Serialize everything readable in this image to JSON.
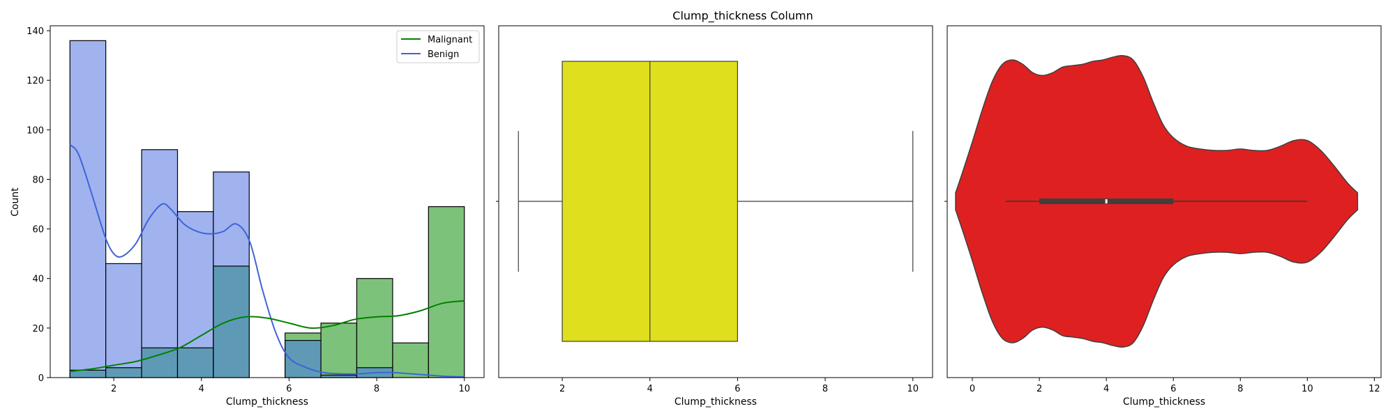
{
  "suptitle": "Clump_thickness Column",
  "colors": {
    "malignant_fill": "#7dc27a",
    "malignant_line": "#008000",
    "benign_fill": "#a0b3ee",
    "benign_line": "#3f63d8",
    "overlap_fill": "#5e9ab5",
    "box_fill": "#dfdf1e",
    "violin_fill": "#df2020",
    "edge": "#000000",
    "violin_edge": "#3f3f3f"
  },
  "chart_data": [
    {
      "type": "histogram",
      "xlabel": "Clump_thickness",
      "ylabel": "Count",
      "xlim": [
        0.55,
        10.45
      ],
      "ylim": [
        0,
        142
      ],
      "xticks": [
        2,
        4,
        6,
        8,
        10
      ],
      "yticks": [
        0,
        20,
        40,
        60,
        80,
        100,
        120,
        140
      ],
      "legend": {
        "placement": "top-right",
        "entries": [
          "Malignant",
          "Benign"
        ]
      },
      "bin_edges": [
        1,
        1.818,
        2.636,
        3.455,
        4.273,
        5.091,
        5.909,
        6.727,
        7.545,
        8.364,
        9.182,
        10
      ],
      "series": [
        {
          "name": "Benign",
          "values": [
            136,
            46,
            92,
            67,
            83,
            0,
            15,
            1,
            4,
            0,
            0
          ]
        },
        {
          "name": "Malignant",
          "values": [
            3,
            4,
            12,
            12,
            45,
            0,
            18,
            22,
            40,
            14,
            69
          ]
        }
      ],
      "kde": [
        {
          "name": "Benign",
          "x": [
            1,
            1.2,
            1.5,
            1.8,
            2.0,
            2.2,
            2.5,
            2.8,
            3.1,
            3.3,
            3.6,
            3.9,
            4.2,
            4.5,
            4.8,
            5.1,
            5.4,
            5.7,
            6.0,
            6.4,
            6.8,
            7.2,
            7.6,
            8.0,
            8.4,
            8.8,
            9.2,
            9.6,
            10
          ],
          "y": [
            94,
            90,
            74,
            57,
            50,
            49,
            54,
            64,
            70,
            68,
            62,
            59,
            58,
            59,
            62,
            55,
            35,
            18,
            8,
            4,
            2,
            1.5,
            1.5,
            2,
            2,
            1.5,
            1,
            0.5,
            0.3
          ]
        },
        {
          "name": "Malignant",
          "x": [
            1,
            1.5,
            2.0,
            2.5,
            3.0,
            3.5,
            4.0,
            4.5,
            5.0,
            5.5,
            6.0,
            6.5,
            7.0,
            7.5,
            8.0,
            8.5,
            9.0,
            9.5,
            10
          ],
          "y": [
            2.5,
            3.5,
            5,
            6.5,
            9,
            12,
            17,
            22,
            24.5,
            24,
            22,
            20,
            21,
            23.5,
            24.5,
            25,
            27,
            30,
            31
          ]
        }
      ]
    },
    {
      "type": "box",
      "xlabel": "Clump_thickness",
      "xlim": [
        0.55,
        10.45
      ],
      "xticks": [
        2,
        4,
        6,
        8,
        10
      ],
      "stats": {
        "min": 1,
        "q1": 2,
        "median": 4,
        "q3": 6,
        "max": 10
      }
    },
    {
      "type": "violin",
      "xlabel": "Clump_thickness",
      "xlim": [
        -0.75,
        12.2
      ],
      "xticks": [
        0,
        2,
        4,
        6,
        8,
        10,
        12
      ],
      "stats": {
        "min": 1,
        "q1": 2,
        "median": 4,
        "q3": 6,
        "max": 10
      },
      "density": {
        "x": [
          -0.5,
          -0.3,
          0,
          0.3,
          0.6,
          0.9,
          1.2,
          1.5,
          1.8,
          2.1,
          2.4,
          2.7,
          3.0,
          3.3,
          3.6,
          3.9,
          4.2,
          4.5,
          4.8,
          5.1,
          5.4,
          5.7,
          6.0,
          6.4,
          6.8,
          7.2,
          7.6,
          8.0,
          8.4,
          8.8,
          9.2,
          9.6,
          10.0,
          10.4,
          10.8,
          11.2,
          11.5
        ],
        "width": [
          0.06,
          0.2,
          0.42,
          0.65,
          0.85,
          0.97,
          1.0,
          0.97,
          0.91,
          0.89,
          0.91,
          0.95,
          0.96,
          0.97,
          0.99,
          1.0,
          1.02,
          1.03,
          1.0,
          0.88,
          0.7,
          0.54,
          0.45,
          0.39,
          0.37,
          0.36,
          0.36,
          0.37,
          0.36,
          0.36,
          0.39,
          0.43,
          0.43,
          0.36,
          0.25,
          0.13,
          0.06
        ]
      }
    }
  ]
}
